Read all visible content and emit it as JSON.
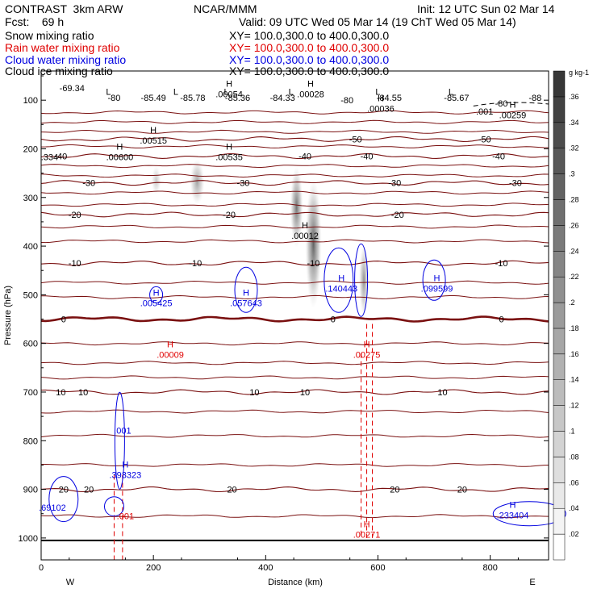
{
  "header": {
    "model": "CONTRAST  3km ARW",
    "org": "NCAR/MMM",
    "init": "Init: 12 UTC Sun 02 Mar 14",
    "fcst": "Fcst:    69 h",
    "valid": "Valid: 09 UTC Wed 05 Mar 14 (19 ChT Wed 05 Mar 14)",
    "fields": [
      {
        "name": "Snow mixing ratio",
        "xy": "XY= 100.0,300.0 to 400.0,300.0",
        "color": "#000000"
      },
      {
        "name": "Rain water mixing ratio",
        "xy": "XY= 100.0,300.0 to 400.0,300.0",
        "color": "#e00000"
      },
      {
        "name": "Cloud water mixing ratio",
        "xy": "XY= 100.0,300.0 to 400.0,300.0",
        "color": "#0000e0"
      },
      {
        "name": "Cloud ice mixing ratio",
        "xy": "XY= 100.0,300.0 to 400.0,300.0",
        "color": "#000000"
      }
    ]
  },
  "chart_data": {
    "type": "contour",
    "xlabel": "Distance (km)",
    "ylabel": "Pressure (hPa)",
    "xlim": [
      0,
      904
    ],
    "ylim": [
      1045,
      40
    ],
    "xticks": [
      0,
      200,
      400,
      600,
      800
    ],
    "yticks": [
      100,
      200,
      300,
      400,
      500,
      600,
      700,
      800,
      900,
      1000
    ],
    "x_end_labels": {
      "left": "W",
      "right": "E"
    },
    "colorbar": {
      "unit": "g kg-1",
      "levels": [
        ".02",
        ".04",
        ".06",
        ".08",
        ".1",
        ".12",
        ".14",
        ".16",
        ".18",
        ".2",
        ".22",
        ".24",
        ".26",
        ".28",
        ".3",
        ".32",
        ".34",
        ".36"
      ]
    },
    "temperature_contours": [
      {
        "level": "-50",
        "p": 180,
        "labels": [
          {
            "x": 560,
            "text": "-50"
          },
          {
            "x": 790,
            "text": "-50"
          }
        ]
      },
      {
        "level": "-40",
        "p": 215,
        "labels": [
          {
            "x": 35,
            "text": "-40"
          },
          {
            "x": 470,
            "text": "-40"
          },
          {
            "x": 580,
            "text": "-40"
          },
          {
            "x": 815,
            "text": "-40"
          }
        ]
      },
      {
        "level": "-30",
        "p": 270,
        "labels": [
          {
            "x": 85,
            "text": "-30"
          },
          {
            "x": 360,
            "text": "-30"
          },
          {
            "x": 630,
            "text": "-30"
          },
          {
            "x": 845,
            "text": "-30"
          }
        ]
      },
      {
        "level": "-20",
        "p": 335,
        "labels": [
          {
            "x": 60,
            "text": "-20"
          },
          {
            "x": 335,
            "text": "-20"
          },
          {
            "x": 635,
            "text": "-20"
          }
        ]
      },
      {
        "level": "-10",
        "p": 435,
        "labels": [
          {
            "x": 60,
            "text": "-10"
          },
          {
            "x": 275,
            "text": "-10"
          },
          {
            "x": 485,
            "text": "-10"
          },
          {
            "x": 820,
            "text": "-10"
          }
        ]
      },
      {
        "level": "0",
        "p": 550,
        "labels": [
          {
            "x": 40,
            "text": "0"
          },
          {
            "x": 520,
            "text": "0"
          },
          {
            "x": 820,
            "text": "0"
          }
        ]
      },
      {
        "level": "10",
        "p": 700,
        "labels": [
          {
            "x": 35,
            "text": "10"
          },
          {
            "x": 75,
            "text": "10"
          },
          {
            "x": 380,
            "text": "10"
          },
          {
            "x": 470,
            "text": "10"
          },
          {
            "x": 715,
            "text": "10"
          }
        ]
      },
      {
        "level": "20",
        "p": 900,
        "labels": [
          {
            "x": 40,
            "text": "20"
          },
          {
            "x": 85,
            "text": "20"
          },
          {
            "x": 340,
            "text": "20"
          },
          {
            "x": 630,
            "text": "20"
          },
          {
            "x": 750,
            "text": "20"
          }
        ]
      }
    ],
    "extra_temperature_lines_p": [
      125,
      145,
      165,
      195,
      235,
      255,
      290,
      315,
      360,
      390,
      475,
      505,
      600,
      640,
      670,
      740,
      790,
      850,
      955
    ],
    "top_values": [
      {
        "x": 55,
        "p": 75,
        "text": "-69.34"
      },
      {
        "x": 130,
        "p": 95,
        "text": "-80"
      },
      {
        "x": 200,
        "p": 95,
        "text": "-85.49"
      },
      {
        "x": 270,
        "p": 95,
        "text": "-85.78"
      },
      {
        "x": 350,
        "p": 95,
        "text": "-85.36"
      },
      {
        "x": 430,
        "p": 95,
        "text": "-84.33"
      },
      {
        "x": 545,
        "p": 100,
        "text": "-80"
      },
      {
        "x": 620,
        "p": 95,
        "text": "-84.55"
      },
      {
        "x": 740,
        "p": 95,
        "text": "-85.67"
      },
      {
        "x": 880,
        "p": 95,
        "text": "-88"
      },
      {
        "x": 820,
        "p": 106,
        "text": "-80"
      }
    ],
    "l_markers": [
      {
        "x": 120,
        "p": 82
      },
      {
        "x": 240,
        "p": 82
      },
      {
        "x": 330,
        "p": 82
      },
      {
        "x": 445,
        "p": 82
      },
      {
        "x": 600,
        "p": 82
      },
      {
        "x": 730,
        "p": 82
      }
    ],
    "snow_labels": [
      {
        "x": 335,
        "p": 82,
        "h": "H",
        "text": ".00054"
      },
      {
        "x": 480,
        "p": 82,
        "h": "H",
        "text": ".00028"
      },
      {
        "x": 605,
        "p": 112,
        "h": "H",
        "text": ".00036"
      },
      {
        "x": 200,
        "p": 178,
        "h": "H",
        "text": ".00515"
      },
      {
        "x": 140,
        "p": 212,
        "h": "H",
        "text": ".00600"
      },
      {
        "x": 335,
        "p": 212,
        "h": "H",
        "text": ".00535"
      },
      {
        "x": 470,
        "p": 373,
        "h": "H",
        "text": ".00012"
      },
      {
        "x": 15,
        "p": 212,
        "h": "",
        "text": ".334"
      },
      {
        "x": 790,
        "p": 118,
        "h": "",
        "text": ".001"
      },
      {
        "x": 840,
        "p": 125,
        "h": "H",
        "text": ".00259"
      }
    ],
    "cloud_water_labels": [
      {
        "x": 205,
        "p": 512,
        "h": "H",
        "text": ".005425"
      },
      {
        "x": 365,
        "p": 512,
        "h": "H",
        "text": ".057643"
      },
      {
        "x": 535,
        "p": 482,
        "h": "H",
        "text": ".140443"
      },
      {
        "x": 705,
        "p": 482,
        "h": "H",
        "text": ".099599"
      },
      {
        "x": 20,
        "p": 932,
        "h": "",
        "text": ".69102"
      },
      {
        "x": 840,
        "p": 948,
        "h": "H",
        "text": ".233404"
      },
      {
        "x": 145,
        "p": 774,
        "h": "",
        "text": ".001"
      },
      {
        "x": 150,
        "p": 865,
        "h": "H",
        "text": ".393323"
      }
    ],
    "rain_labels": [
      {
        "x": 230,
        "p": 618,
        "h": "H",
        "text": ".00009"
      },
      {
        "x": 580,
        "p": 618,
        "h": "H",
        "text": ".00275"
      },
      {
        "x": 580,
        "p": 988,
        "h": "H",
        "text": ".00271"
      },
      {
        "x": 150,
        "p": 950,
        "h": "",
        "text": ".001"
      }
    ]
  }
}
